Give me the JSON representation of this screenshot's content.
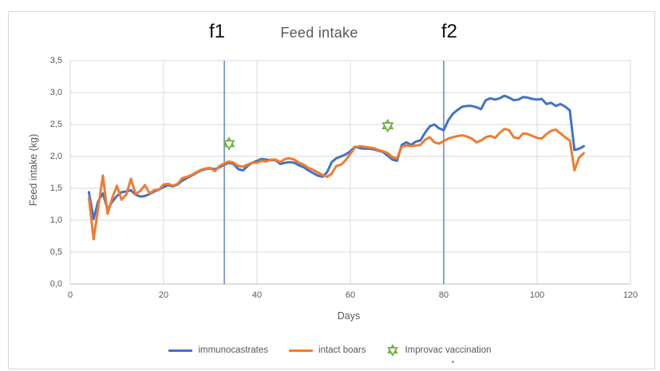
{
  "window": {
    "background": "#ffffff",
    "frame_border_color": "#d9d9d9"
  },
  "chart_data": {
    "type": "line",
    "title": "Feed intake",
    "xlabel": "Days",
    "ylabel": "Feed intake (kg)",
    "xlim": [
      0,
      120
    ],
    "ylim": [
      0,
      3.5
    ],
    "grid": true,
    "legend_position": "bottom",
    "x_ticks": [
      {
        "v": 0,
        "label": "0"
      },
      {
        "v": 20,
        "label": "20"
      },
      {
        "v": 40,
        "label": "40"
      },
      {
        "v": 60,
        "label": "60"
      },
      {
        "v": 80,
        "label": "80"
      },
      {
        "v": 100,
        "label": "100"
      },
      {
        "v": 120,
        "label": "120"
      }
    ],
    "y_ticks": [
      {
        "v": 0.0,
        "label": "0,0"
      },
      {
        "v": 0.5,
        "label": "0,5"
      },
      {
        "v": 1.0,
        "label": "1,0"
      },
      {
        "v": 1.5,
        "label": "1,5"
      },
      {
        "v": 2.0,
        "label": "2,0"
      },
      {
        "v": 2.5,
        "label": "2,5"
      },
      {
        "v": 3.0,
        "label": "3,0"
      },
      {
        "v": 3.5,
        "label": "3,5"
      }
    ],
    "x_start_day": 4,
    "x_step_days": 1,
    "series": [
      {
        "name": "immunocastrates",
        "color": "#4472C4",
        "values": [
          1.44,
          1.02,
          1.3,
          1.42,
          1.17,
          1.29,
          1.38,
          1.44,
          1.45,
          1.47,
          1.4,
          1.37,
          1.38,
          1.41,
          1.45,
          1.48,
          1.52,
          1.55,
          1.53,
          1.56,
          1.62,
          1.66,
          1.7,
          1.74,
          1.78,
          1.8,
          1.81,
          1.8,
          1.83,
          1.87,
          1.9,
          1.88,
          1.8,
          1.78,
          1.85,
          1.9,
          1.93,
          1.96,
          1.95,
          1.94,
          1.94,
          1.88,
          1.9,
          1.91,
          1.9,
          1.86,
          1.83,
          1.78,
          1.74,
          1.7,
          1.68,
          1.75,
          1.91,
          1.97,
          2.0,
          2.03,
          2.08,
          2.15,
          2.13,
          2.12,
          2.12,
          2.11,
          2.09,
          2.07,
          2.01,
          1.95,
          1.93,
          2.18,
          2.22,
          2.18,
          2.23,
          2.25,
          2.37,
          2.47,
          2.5,
          2.44,
          2.41,
          2.57,
          2.67,
          2.73,
          2.78,
          2.79,
          2.79,
          2.77,
          2.74,
          2.88,
          2.91,
          2.89,
          2.91,
          2.95,
          2.92,
          2.88,
          2.89,
          2.93,
          2.92,
          2.9,
          2.89,
          2.9,
          2.82,
          2.84,
          2.79,
          2.82,
          2.78,
          2.72,
          2.1,
          2.12,
          2.16
        ]
      },
      {
        "name": "intact boars",
        "color": "#ED7D31",
        "values": [
          1.35,
          0.7,
          1.2,
          1.7,
          1.1,
          1.35,
          1.54,
          1.32,
          1.4,
          1.65,
          1.41,
          1.46,
          1.55,
          1.42,
          1.47,
          1.48,
          1.56,
          1.57,
          1.54,
          1.57,
          1.66,
          1.68,
          1.71,
          1.75,
          1.79,
          1.81,
          1.82,
          1.77,
          1.85,
          1.89,
          1.92,
          1.9,
          1.85,
          1.84,
          1.87,
          1.9,
          1.9,
          1.93,
          1.92,
          1.95,
          1.95,
          1.91,
          1.96,
          1.97,
          1.95,
          1.9,
          1.87,
          1.82,
          1.79,
          1.75,
          1.71,
          1.68,
          1.73,
          1.85,
          1.87,
          1.94,
          2.04,
          2.14,
          2.16,
          2.15,
          2.14,
          2.13,
          2.1,
          2.08,
          2.05,
          1.99,
          1.97,
          2.15,
          2.17,
          2.16,
          2.17,
          2.18,
          2.26,
          2.3,
          2.22,
          2.2,
          2.24,
          2.28,
          2.3,
          2.32,
          2.33,
          2.31,
          2.28,
          2.22,
          2.25,
          2.3,
          2.32,
          2.29,
          2.37,
          2.43,
          2.41,
          2.3,
          2.28,
          2.36,
          2.35,
          2.32,
          2.29,
          2.28,
          2.35,
          2.4,
          2.42,
          2.36,
          2.3,
          2.25,
          1.78,
          1.98,
          2.05
        ]
      }
    ],
    "vaccination_markers": {
      "name": "Improvac vaccination",
      "color": "#70AD47",
      "points": [
        {
          "day": 34,
          "value": 2.2
        },
        {
          "day": 68,
          "value": 2.48
        }
      ]
    },
    "annotations": [
      {
        "label": "f1",
        "day": 33
      },
      {
        "label": "f2",
        "day": 80
      }
    ],
    "colors": {
      "grid": "#d9d9d9",
      "axis": "#bfbfbf",
      "tick_text": "#595959",
      "annotation_line": "#4472C4",
      "annotation_text": "#0d0d0d",
      "title_text": "#595959"
    }
  },
  "legend": {
    "items": [
      {
        "label": "immunocastrates",
        "swatch": "line",
        "color": "#4472C4"
      },
      {
        "label": "intact boars",
        "swatch": "line",
        "color": "#ED7D31"
      },
      {
        "label": "Improvac vaccination",
        "swatch": "star",
        "color": "#70AD47"
      }
    ]
  }
}
